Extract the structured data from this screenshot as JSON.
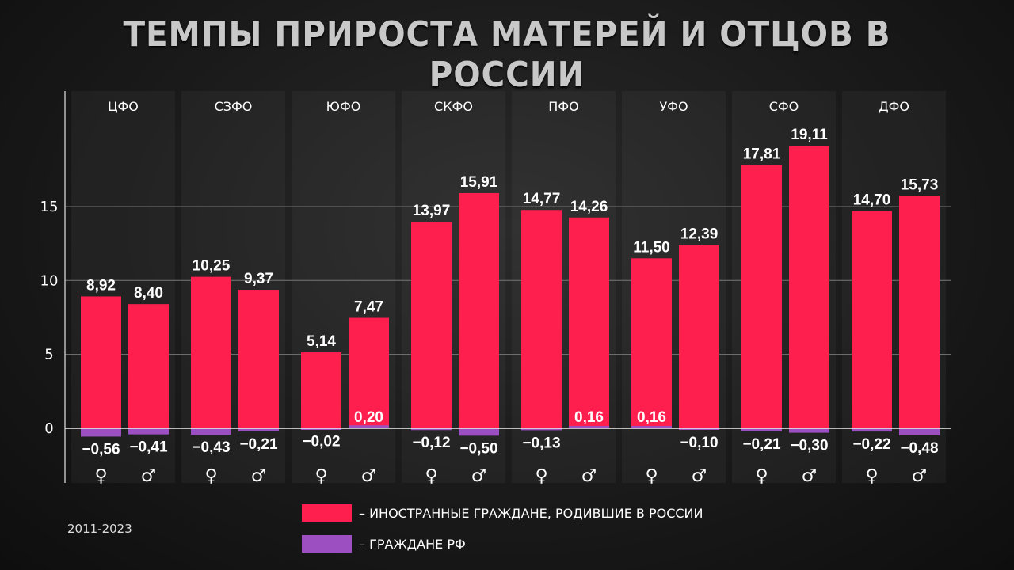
{
  "chart_data": {
    "type": "bar",
    "title": "ТЕМПЫ ПРИРОСТА МАТЕРЕЙ И ОТЦОВ В РОССИИ",
    "categories": [
      "ЦФО",
      "СЗФО",
      "ЮФО",
      "СКФО",
      "ПФО",
      "УФО",
      "СФО",
      "ДФО"
    ],
    "sub_categories": [
      "♀",
      "♂"
    ],
    "series": [
      {
        "name": "– ИНОСТРАННЫЕ ГРАЖДАНЕ, РОДИВШИЕ В РОССИИ",
        "color": "#ff1f4f",
        "values": [
          [
            8.92,
            8.4
          ],
          [
            10.25,
            9.37
          ],
          [
            5.14,
            7.47
          ],
          [
            13.97,
            15.91
          ],
          [
            14.77,
            14.26
          ],
          [
            11.5,
            12.39
          ],
          [
            17.81,
            19.11
          ],
          [
            14.7,
            15.73
          ]
        ],
        "labels": [
          [
            "8,92",
            "8,40"
          ],
          [
            "10,25",
            "9,37"
          ],
          [
            "5,14",
            "7,47"
          ],
          [
            "13,97",
            "15,91"
          ],
          [
            "14,77",
            "14,26"
          ],
          [
            "11,50",
            "12,39"
          ],
          [
            "17,81",
            "19,11"
          ],
          [
            "14,70",
            "15,73"
          ]
        ]
      },
      {
        "name": "– ГРАЖДАНЕ РФ",
        "color": "#9b4fc0",
        "values": [
          [
            -0.56,
            -0.41
          ],
          [
            -0.43,
            -0.21
          ],
          [
            -0.02,
            0.2
          ],
          [
            -0.12,
            -0.5
          ],
          [
            -0.13,
            0.16
          ],
          [
            0.16,
            -0.1
          ],
          [
            -0.21,
            -0.3
          ],
          [
            -0.22,
            -0.48
          ]
        ],
        "labels": [
          [
            "−0,56",
            "−0,41"
          ],
          [
            "−0,43",
            "−0,21"
          ],
          [
            "−0,02",
            "0,20"
          ],
          [
            "−0,12",
            "−0,50"
          ],
          [
            "−0,13",
            "0,16"
          ],
          [
            "0,16",
            "−0,10"
          ],
          [
            "−0,21",
            "−0,30"
          ],
          [
            "−0,22",
            "−0,48"
          ]
        ]
      }
    ],
    "yticks": [
      0,
      5,
      10,
      15
    ],
    "ylim": [
      -1,
      20
    ],
    "grid": true,
    "legend": "bottom-center",
    "note": "2011-2023"
  }
}
